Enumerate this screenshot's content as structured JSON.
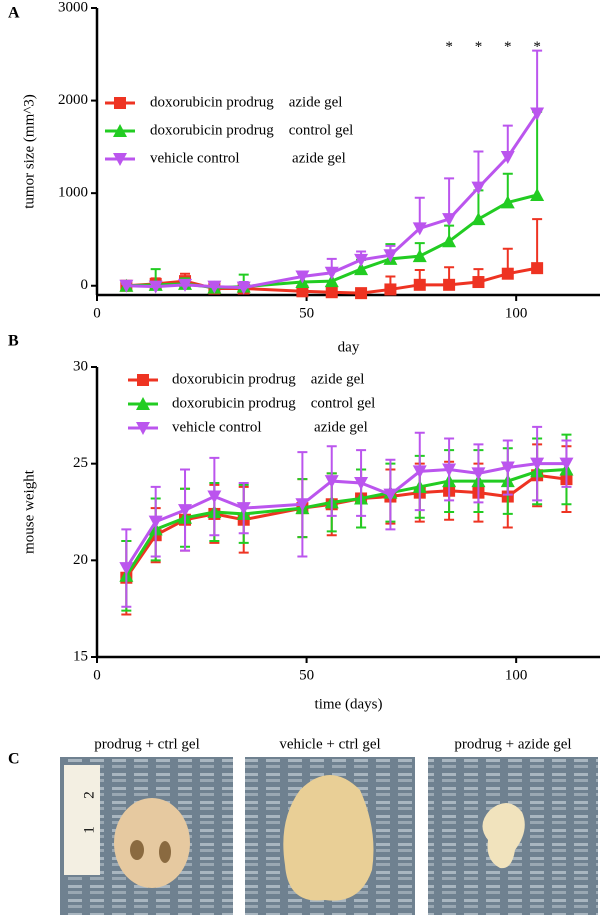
{
  "chart_data": [
    {
      "type": "line",
      "panel_label": "A",
      "xlabel": "day",
      "ylabel": "tumor size (mm^3)",
      "xlim": [
        0,
        120
      ],
      "xticks": [
        0,
        50,
        100
      ],
      "ylim": [
        -100,
        3000
      ],
      "yticks": [
        0,
        1000,
        2000,
        3000
      ],
      "error_bars": "upper",
      "x": [
        7,
        14,
        21,
        28,
        35,
        49,
        56,
        63,
        70,
        77,
        84,
        91,
        98,
        105
      ],
      "series": [
        {
          "name": "doxorubicin prodrug    azide gel",
          "color": "#ee3322",
          "marker": "square",
          "values": [
            0,
            20,
            50,
            -30,
            -30,
            -60,
            -70,
            -80,
            -40,
            10,
            10,
            40,
            130,
            190
          ],
          "errors": [
            30,
            60,
            80,
            40,
            60,
            30,
            30,
            30,
            140,
            160,
            190,
            140,
            270,
            530
          ]
        },
        {
          "name": "doxorubicin prodrug    control gel",
          "color": "#22cc22",
          "marker": "triangle-up",
          "values": [
            0,
            10,
            20,
            -20,
            -10,
            40,
            50,
            180,
            290,
            320,
            480,
            720,
            900,
            980
          ],
          "errors": [
            20,
            170,
            60,
            30,
            130,
            90,
            120,
            100,
            160,
            140,
            170,
            310,
            310,
            900
          ]
        },
        {
          "name": "vehicle control              azide gel",
          "color": "#bb55ee",
          "marker": "triangle-down",
          "values": [
            0,
            -10,
            10,
            -10,
            -20,
            100,
            140,
            280,
            330,
            620,
            720,
            1060,
            1390,
            1860
          ],
          "errors": [
            20,
            50,
            40,
            50,
            60,
            50,
            150,
            90,
            100,
            330,
            440,
            390,
            340,
            680
          ]
        }
      ],
      "annotations": [
        {
          "text": "*",
          "x": 84,
          "y": 2570
        },
        {
          "text": "*",
          "x": 91,
          "y": 2570
        },
        {
          "text": "*",
          "x": 98,
          "y": 2570
        },
        {
          "text": "*",
          "x": 105,
          "y": 2570
        }
      ]
    },
    {
      "type": "line",
      "panel_label": "B",
      "xlabel": "time (days)",
      "ylabel": "mouse weight",
      "xlim": [
        0,
        120
      ],
      "xticks": [
        0,
        50,
        100
      ],
      "ylim": [
        15,
        30
      ],
      "yticks": [
        15,
        20,
        25,
        30
      ],
      "error_bars": "both",
      "x": [
        7,
        14,
        21,
        28,
        35,
        49,
        56,
        63,
        70,
        77,
        84,
        91,
        98,
        105,
        112
      ],
      "series": [
        {
          "name": "doxorubicin prodrug    azide gel",
          "color": "#ee3322",
          "marker": "square",
          "values": [
            19.1,
            21.3,
            22.1,
            22.4,
            22.1,
            22.7,
            22.9,
            23.2,
            23.3,
            23.5,
            23.6,
            23.5,
            23.3,
            24.4,
            24.2
          ],
          "errors": [
            1.9,
            1.4,
            1.6,
            1.5,
            1.7,
            1.5,
            1.6,
            1.5,
            1.4,
            1.5,
            1.5,
            1.5,
            1.6,
            1.6,
            1.7
          ]
        },
        {
          "name": "doxorubicin prodrug    control gel",
          "color": "#22cc22",
          "marker": "triangle-up",
          "values": [
            19.2,
            21.6,
            22.2,
            22.5,
            22.4,
            22.7,
            23.0,
            23.2,
            23.5,
            23.8,
            24.1,
            24.1,
            24.1,
            24.6,
            24.7
          ],
          "errors": [
            1.8,
            1.6,
            1.5,
            1.5,
            1.5,
            1.5,
            1.5,
            1.5,
            1.5,
            1.6,
            1.6,
            1.6,
            1.7,
            1.7,
            1.8
          ]
        },
        {
          "name": "vehicle control              azide gel",
          "color": "#bb55ee",
          "marker": "triangle-down",
          "values": [
            19.6,
            22.0,
            22.6,
            23.3,
            22.7,
            22.9,
            24.1,
            24.0,
            23.4,
            24.6,
            24.7,
            24.5,
            24.8,
            25.0,
            25.0
          ],
          "errors": [
            2.0,
            1.8,
            2.1,
            2.0,
            1.3,
            2.7,
            1.8,
            1.7,
            1.8,
            2.0,
            1.6,
            1.5,
            1.4,
            1.9,
            1.2
          ]
        }
      ]
    }
  ],
  "photos": {
    "panel_label": "C",
    "captions": [
      "prodrug + ctrl gel",
      "vehicle + ctrl gel",
      "prodrug + azide gel"
    ],
    "ruler_labels": [
      "2",
      "1"
    ]
  }
}
